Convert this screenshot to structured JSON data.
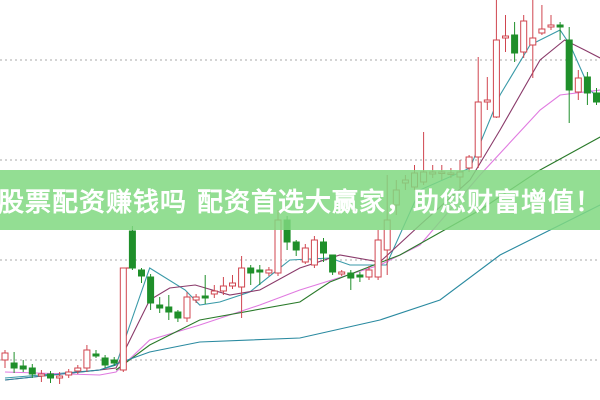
{
  "banner": {
    "text": "股票配资赚钱吗 配资首选大赢家，助您财富增值！"
  },
  "colors": {
    "up": "#d0454f",
    "down": "#1f8f2a",
    "grid": "#a8a8a8",
    "banner": "#80d880"
  },
  "chart_data": {
    "type": "candlestick",
    "title": "",
    "xlabel": "",
    "ylabel": "",
    "grid": "horizontal dotted",
    "ylim": [
      0,
      400
    ],
    "candles": [
      [
        40,
        50,
        32,
        47
      ],
      [
        37,
        48,
        27,
        32
      ],
      [
        34,
        40,
        28,
        31
      ],
      [
        32,
        36,
        22,
        26
      ],
      [
        24,
        30,
        18,
        26
      ],
      [
        26,
        29,
        17,
        22
      ],
      [
        22,
        28,
        16,
        24
      ],
      [
        25,
        31,
        22,
        28
      ],
      [
        29,
        35,
        26,
        32
      ],
      [
        32,
        55,
        28,
        50
      ],
      [
        46,
        50,
        42,
        44
      ],
      [
        42,
        45,
        32,
        35
      ],
      [
        40,
        43,
        34,
        37
      ],
      [
        30,
        132,
        28,
        132
      ],
      [
        169,
        174,
        130,
        132
      ],
      [
        130,
        132,
        117,
        124
      ],
      [
        123,
        126,
        90,
        97
      ],
      [
        95,
        103,
        87,
        92
      ],
      [
        93,
        105,
        80,
        88
      ],
      [
        88,
        90,
        78,
        82
      ],
      [
        82,
        108,
        78,
        103
      ],
      [
        100,
        106,
        97,
        103
      ],
      [
        104,
        125,
        96,
        102
      ],
      [
        106,
        115,
        102,
        109
      ],
      [
        109,
        123,
        105,
        114
      ],
      [
        114,
        125,
        111,
        117
      ],
      [
        113,
        144,
        82,
        132
      ],
      [
        132,
        135,
        115,
        127
      ],
      [
        130,
        135,
        115,
        128
      ],
      [
        127,
        133,
        124,
        130
      ],
      [
        127,
        190,
        124,
        180
      ],
      [
        180,
        184,
        150,
        158
      ],
      [
        158,
        160,
        144,
        150
      ],
      [
        138,
        156,
        136,
        152
      ],
      [
        135,
        164,
        132,
        160
      ],
      [
        158,
        162,
        138,
        147
      ],
      [
        145,
        145,
        125,
        128
      ],
      [
        126,
        130,
        124,
        128
      ],
      [
        127,
        130,
        110,
        122
      ],
      [
        125,
        128,
        118,
        123
      ],
      [
        123,
        134,
        120,
        130
      ],
      [
        123,
        170,
        120,
        160
      ],
      [
        150,
        225,
        125,
        180
      ],
      [
        195,
        220,
        185,
        210
      ],
      [
        217,
        225,
        210,
        220
      ],
      [
        213,
        235,
        210,
        227
      ],
      [
        218,
        268,
        215,
        228
      ],
      [
        226,
        235,
        222,
        228
      ],
      [
        227,
        235,
        220,
        228
      ],
      [
        226,
        232,
        222,
        227
      ],
      [
        223,
        240,
        212,
        228
      ],
      [
        232,
        245,
        228,
        243
      ],
      [
        243,
        343,
        232,
        298
      ],
      [
        298,
        323,
        290,
        300
      ],
      [
        283,
        400,
        282,
        360
      ],
      [
        362,
        385,
        348,
        364
      ],
      [
        365,
        378,
        338,
        347
      ],
      [
        348,
        385,
        342,
        379
      ],
      [
        355,
        400,
        322,
        362
      ],
      [
        367,
        395,
        365,
        371
      ],
      [
        373,
        385,
        370,
        375
      ],
      [
        375,
        378,
        360,
        373
      ],
      [
        360,
        373,
        277,
        310
      ],
      [
        308,
        330,
        300,
        322
      ],
      [
        323,
        328,
        295,
        307
      ],
      [
        307,
        312,
        295,
        298
      ]
    ],
    "candle_fields": [
      "open",
      "high",
      "low",
      "close"
    ],
    "gap_marker": {
      "from_candle": 13,
      "to_candle": 14,
      "price": 132
    },
    "moving_averages": [
      {
        "color": "#3a9aa8",
        "points": [
          [
            0,
            22
          ],
          [
            10.4,
            30
          ],
          [
            12.2,
            35
          ],
          [
            15.9,
            132
          ],
          [
            19.8,
            110
          ],
          [
            21.4,
            95
          ],
          [
            23.6,
            98
          ],
          [
            26.9,
            108
          ],
          [
            31.3,
            140
          ],
          [
            35.7,
            142
          ],
          [
            37.9,
            135
          ],
          [
            41.9,
            135
          ],
          [
            45.6,
            210
          ],
          [
            51.1,
            232
          ],
          [
            54.4,
            305
          ],
          [
            57.7,
            355
          ],
          [
            61,
            370
          ],
          [
            62.1,
            355
          ],
          [
            64.3,
            310
          ],
          [
            65.4,
            300
          ]
        ]
      },
      {
        "color": "#8a3a6a",
        "points": [
          [
            0,
            20
          ],
          [
            10.4,
            30
          ],
          [
            12.2,
            32
          ],
          [
            15.9,
            100
          ],
          [
            18.1,
            112
          ],
          [
            20.9,
            115
          ],
          [
            24.7,
            105
          ],
          [
            28,
            110
          ],
          [
            32.4,
            132
          ],
          [
            36.8,
            145
          ],
          [
            41.2,
            138
          ],
          [
            45.6,
            175
          ],
          [
            51.1,
            220
          ],
          [
            54.4,
            270
          ],
          [
            58.8,
            340
          ],
          [
            61.5,
            360
          ],
          [
            63.7,
            350
          ],
          [
            65.4,
            342
          ]
        ]
      },
      {
        "color": "#e07ae0",
        "points": [
          [
            0,
            28
          ],
          [
            10.4,
            25
          ],
          [
            12.2,
            28
          ],
          [
            15.9,
            60
          ],
          [
            21.4,
            75
          ],
          [
            28,
            95
          ],
          [
            32.4,
            110
          ],
          [
            41.2,
            135
          ],
          [
            45.6,
            155
          ],
          [
            52.2,
            225
          ],
          [
            58.8,
            290
          ],
          [
            61,
            305
          ],
          [
            65.4,
            310
          ]
        ]
      },
      {
        "color": "#2a7a2a",
        "points": [
          [
            12.2,
            30
          ],
          [
            15.9,
            55
          ],
          [
            21.4,
            80
          ],
          [
            32.4,
            98
          ],
          [
            35.7,
            118
          ],
          [
            43.4,
            145
          ],
          [
            52.2,
            190
          ],
          [
            58.8,
            230
          ],
          [
            65.4,
            263
          ]
        ]
      },
      {
        "color": "#2a8aa0",
        "points": [
          [
            0,
            20
          ],
          [
            10.4,
            30
          ],
          [
            15.9,
            48
          ],
          [
            21.4,
            58
          ],
          [
            32.4,
            62
          ],
          [
            41.2,
            80
          ],
          [
            47.8,
            100
          ],
          [
            54.4,
            145
          ],
          [
            61,
            175
          ],
          [
            65.4,
            195
          ]
        ]
      }
    ],
    "gridlines_price": [
      40,
      140,
      240,
      340
    ]
  }
}
